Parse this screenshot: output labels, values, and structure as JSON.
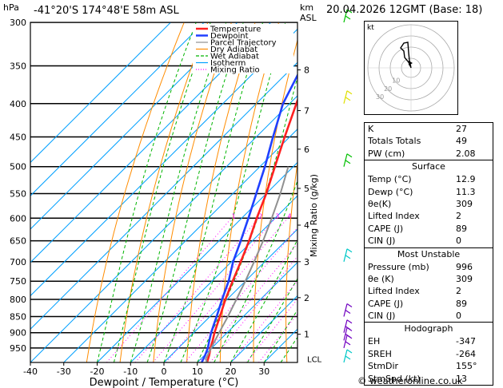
{
  "header": {
    "location": "-41°20'S  174°48'E  58m  ASL",
    "datetime": "20.04.2026  12GMT  (Base: 18)",
    "hpa_unit": "hPa",
    "km_unit": "km",
    "asl_unit": "ASL"
  },
  "chart_data": {
    "type": "line",
    "subtype": "skew-T log-P",
    "xlabel": "Dewpoint / Temperature (°C)",
    "ylabel_right": "Mixing Ratio (g/kg)",
    "xlim": [
      -40,
      40
    ],
    "ylim_hpa": [
      300,
      1000
    ],
    "x_ticks": [
      "-40",
      "-30",
      "-20",
      "-10",
      "0",
      "10",
      "20",
      "30"
    ],
    "pressure_levels": [
      300,
      350,
      400,
      450,
      500,
      550,
      600,
      650,
      700,
      750,
      800,
      850,
      900,
      950
    ],
    "km_ticks": [
      {
        "km": "1",
        "p": 905
      },
      {
        "km": "2",
        "p": 795
      },
      {
        "km": "3",
        "p": 700
      },
      {
        "km": "4",
        "p": 615
      },
      {
        "km": "5",
        "p": 540
      },
      {
        "km": "6",
        "p": 470
      },
      {
        "km": "7",
        "p": 410
      },
      {
        "km": "8",
        "p": 355
      }
    ],
    "lcl_label": "LCL",
    "lcl_p": 988,
    "mixing_ratio_labels": [
      "1",
      "2",
      "3",
      "4",
      "6",
      "8",
      "10",
      "15",
      "20",
      "25"
    ],
    "mixing_ratio_label_p": 595,
    "legend": [
      "Temperature",
      "Dewpoint",
      "Parcel Trajectory",
      "Dry Adiabat",
      "Wet Adiabat",
      "Isotherm",
      "Mixing Ratio"
    ],
    "legend_colors": [
      "#ff2020",
      "#2040ff",
      "#909090",
      "#ff8c00",
      "#00b400",
      "#00a0ff",
      "#ff00ff"
    ],
    "series": [
      {
        "name": "Temperature",
        "color": "#ff2020",
        "points": [
          [
            1000,
            12.9
          ],
          [
            975,
            11.4
          ],
          [
            950,
            9.6
          ],
          [
            925,
            8.0
          ],
          [
            900,
            6.2
          ],
          [
            875,
            4.6
          ],
          [
            850,
            3.0
          ],
          [
            800,
            -0.5
          ],
          [
            750,
            -3.8
          ],
          [
            700,
            -7.2
          ],
          [
            650,
            -11.0
          ],
          [
            600,
            -15.5
          ],
          [
            550,
            -20.0
          ],
          [
            500,
            -25.5
          ],
          [
            450,
            -31.5
          ],
          [
            400,
            -38.0
          ],
          [
            350,
            -45.0
          ],
          [
            300,
            -52.0
          ]
        ]
      },
      {
        "name": "Dewpoint",
        "color": "#2040ff",
        "points": [
          [
            1000,
            11.3
          ],
          [
            975,
            10.2
          ],
          [
            950,
            8.8
          ],
          [
            925,
            7.0
          ],
          [
            900,
            5.2
          ],
          [
            875,
            3.6
          ],
          [
            850,
            2.0
          ],
          [
            800,
            -1.5
          ],
          [
            750,
            -5.0
          ],
          [
            700,
            -9.5
          ],
          [
            650,
            -13.5
          ],
          [
            600,
            -18.0
          ],
          [
            550,
            -23.0
          ],
          [
            500,
            -28.5
          ],
          [
            450,
            -35.0
          ],
          [
            400,
            -42.0
          ],
          [
            350,
            -47.5
          ],
          [
            300,
            -54.5
          ]
        ]
      },
      {
        "name": "Parcel Trajectory",
        "color": "#909090",
        "points": [
          [
            1000,
            12.9
          ],
          [
            988,
            11.5
          ],
          [
            950,
            9.8
          ],
          [
            900,
            7.6
          ],
          [
            850,
            5.4
          ],
          [
            800,
            2.8
          ],
          [
            750,
            0.0
          ],
          [
            700,
            -3.2
          ],
          [
            650,
            -6.8
          ],
          [
            600,
            -11.0
          ],
          [
            550,
            -15.8
          ],
          [
            500,
            -21.5
          ]
        ]
      }
    ],
    "wind_barbs": [
      {
        "p": 300,
        "color": "#00c000"
      },
      {
        "p": 400,
        "color": "#e0e000"
      },
      {
        "p": 500,
        "color": "#00c000"
      },
      {
        "p": 700,
        "color": "#00c8c8"
      },
      {
        "p": 850,
        "color": "#7000c0"
      },
      {
        "p": 900,
        "color": "#7000c0"
      },
      {
        "p": 925,
        "color": "#7000c0"
      },
      {
        "p": 950,
        "color": "#7000c0"
      },
      {
        "p": 1000,
        "color": "#00c8c8"
      }
    ]
  },
  "hodograph": {
    "unit_label": "kt",
    "ring_labels": [
      "10",
      "20",
      "30"
    ]
  },
  "indices": {
    "top": [
      {
        "label": "K",
        "value": "27"
      },
      {
        "label": "Totals Totals",
        "value": "49"
      },
      {
        "label": "PW (cm)",
        "value": "2.08"
      }
    ],
    "surface": {
      "title": "Surface",
      "rows": [
        {
          "label": "Temp (°C)",
          "value": "12.9"
        },
        {
          "label": "Dewp (°C)",
          "value": "11.3"
        },
        {
          "label": "θe(K)",
          "value": "309"
        },
        {
          "label": "Lifted Index",
          "value": "2"
        },
        {
          "label": "CAPE (J)",
          "value": "89"
        },
        {
          "label": "CIN (J)",
          "value": "0"
        }
      ]
    },
    "most_unstable": {
      "title": "Most Unstable",
      "rows": [
        {
          "label": "Pressure (mb)",
          "value": "996"
        },
        {
          "label": "θe (K)",
          "value": "309"
        },
        {
          "label": "Lifted Index",
          "value": "2"
        },
        {
          "label": "CAPE (J)",
          "value": "89"
        },
        {
          "label": "CIN (J)",
          "value": "0"
        }
      ]
    },
    "hodograph": {
      "title": "Hodograph",
      "rows": [
        {
          "label": "EH",
          "value": "-347"
        },
        {
          "label": "SREH",
          "value": "-264"
        },
        {
          "label": "StmDir",
          "value": "155°"
        },
        {
          "label": "StmSpd (kt)",
          "value": "13"
        }
      ]
    }
  },
  "copyright": "© weatheronline.co.uk"
}
